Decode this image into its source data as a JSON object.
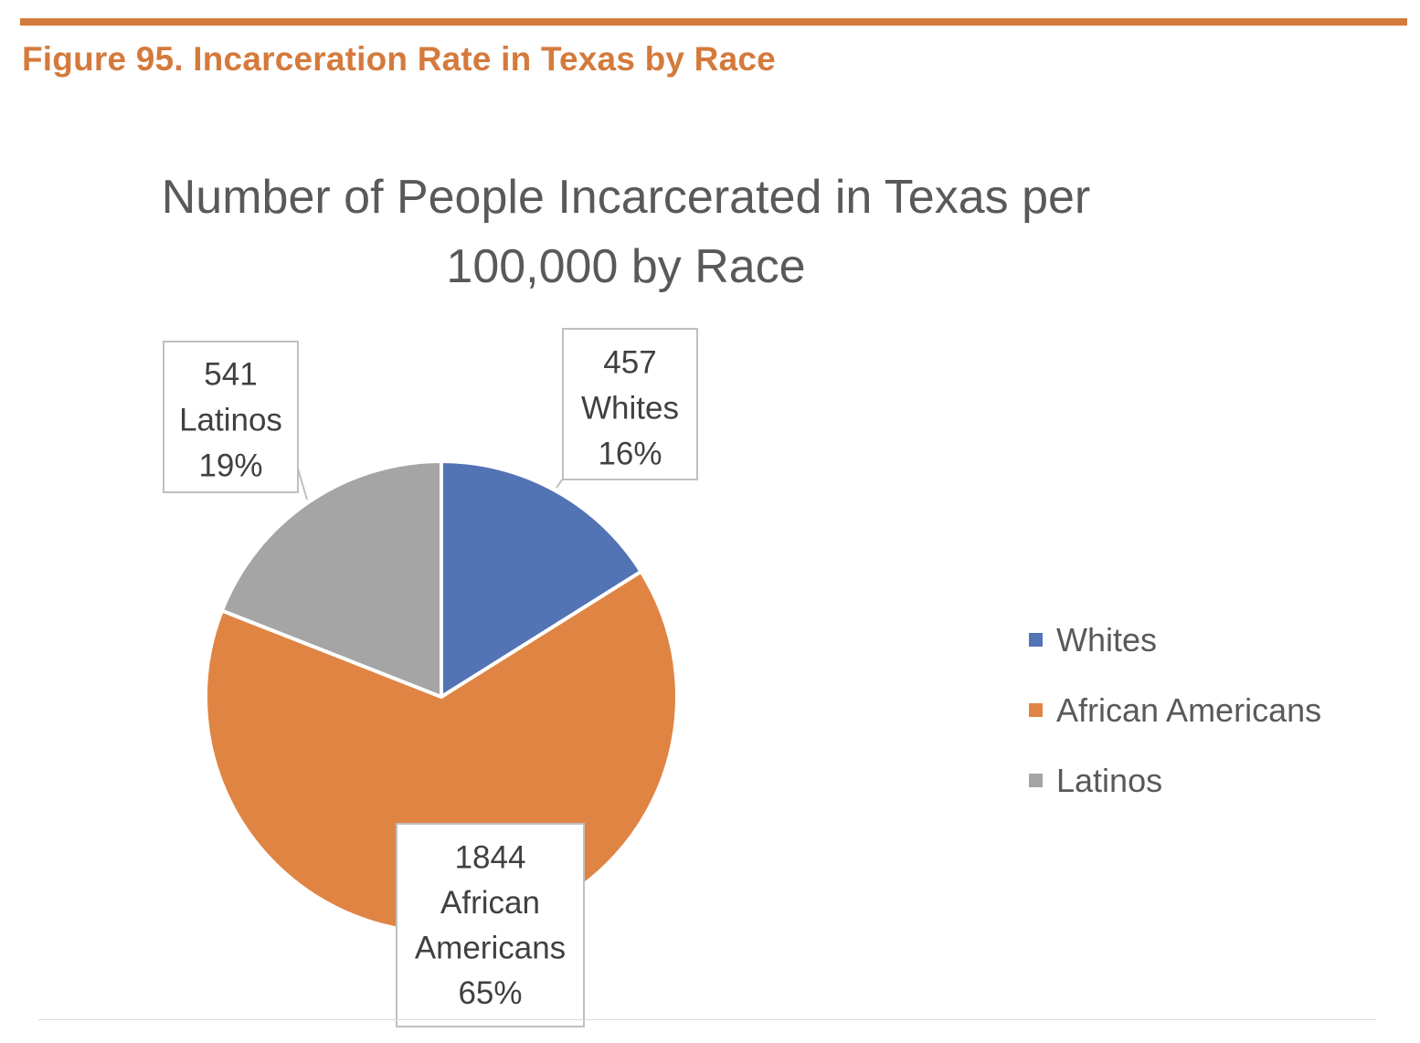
{
  "figure": {
    "caption": "Figure 95. Incarceration Rate in Texas by Race",
    "accent_color": "#d47a3c"
  },
  "chart_data": {
    "type": "pie",
    "title_lines": [
      "Number of People Incarcerated in Texas per",
      "100,000 by Race"
    ],
    "legend_position": "right",
    "slices": [
      {
        "category": "Whites",
        "value": 457,
        "percent": "16%",
        "color": "#5273b4",
        "label_lines": [
          "457",
          "Whites",
          "16%"
        ]
      },
      {
        "category": "African Americans",
        "value": 1844,
        "percent": "65%",
        "color": "#e08444",
        "label_lines": [
          "1844",
          "African",
          "Americans",
          "65%"
        ]
      },
      {
        "category": "Latinos",
        "value": 541,
        "percent": "19%",
        "color": "#a5a5a5",
        "label_lines": [
          "541",
          "Latinos",
          "19%"
        ]
      }
    ]
  }
}
